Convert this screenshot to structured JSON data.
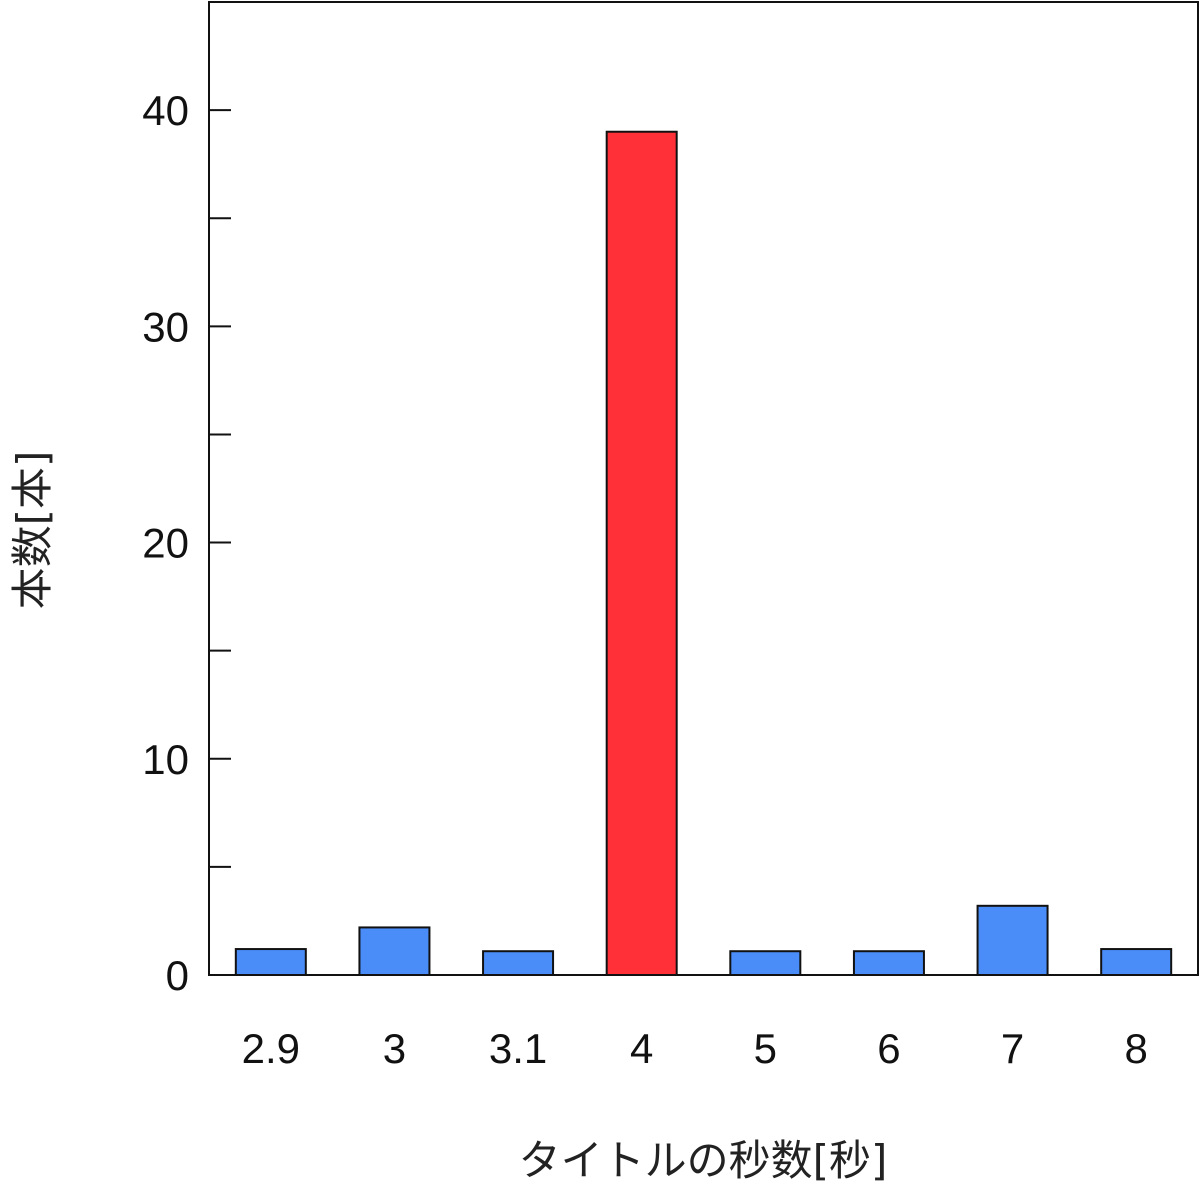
{
  "chart_data": {
    "type": "bar",
    "title": "",
    "xlabel": "タイトルの秒数[秒]",
    "ylabel": "本数[本]",
    "categories": [
      "2.9",
      "3",
      "3.1",
      "4",
      "5",
      "6",
      "7",
      "8"
    ],
    "values": [
      1.2,
      2.2,
      1.1,
      39,
      1.1,
      1.1,
      3.2,
      1.2
    ],
    "highlight_index": 3,
    "ylim": [
      0,
      45
    ],
    "yticks": [
      0,
      10,
      20,
      30,
      40
    ],
    "yminor_ticks": [
      5,
      15,
      25,
      35
    ],
    "grid": false,
    "legend": "none",
    "colors": {
      "bar": "#4a8df8",
      "highlight": "#ff3038",
      "bar_stroke": "#111111",
      "axis": "#111111"
    }
  }
}
